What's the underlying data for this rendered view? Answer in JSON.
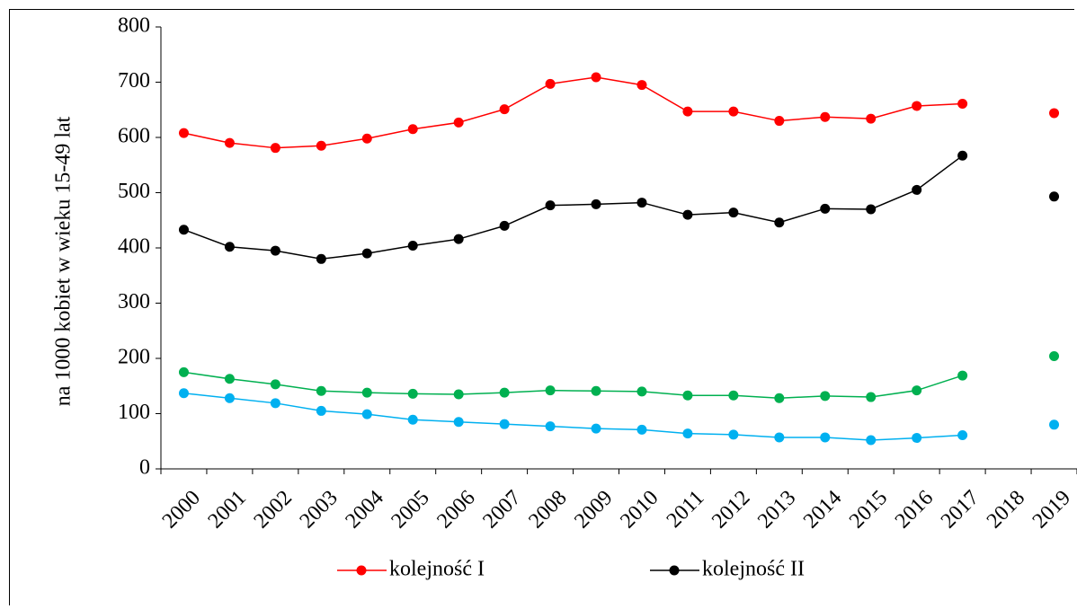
{
  "chart_data": {
    "type": "line",
    "title": "",
    "xlabel": "",
    "ylabel": "na 1000 kobiet w wieku 15-49 lat",
    "ylim": [
      0,
      800
    ],
    "y_ticks": [
      "0",
      "100",
      "200",
      "300",
      "400",
      "500",
      "600",
      "700",
      "800"
    ],
    "categories": [
      "2000",
      "2001",
      "2002",
      "2003",
      "2004",
      "2005",
      "2006",
      "2007",
      "2008",
      "2009",
      "2010",
      "2011",
      "2012",
      "2013",
      "2014",
      "2015",
      "2016",
      "2017",
      "2018",
      "2019"
    ],
    "grid": false,
    "legend_position": "bottom",
    "series": [
      {
        "name": "kolejność I",
        "color": "#ff0000",
        "values": [
          608,
          590,
          581,
          585,
          598,
          615,
          627,
          651,
          697,
          709,
          695,
          647,
          647,
          630,
          637,
          634,
          657,
          661,
          null,
          644
        ]
      },
      {
        "name": "kolejność II",
        "color": "#000000",
        "values": [
          433,
          402,
          395,
          380,
          390,
          404,
          416,
          440,
          477,
          479,
          482,
          460,
          464,
          446,
          471,
          470,
          505,
          567,
          null,
          493
        ]
      },
      {
        "color": "#00b050",
        "values": [
          175,
          163,
          153,
          141,
          138,
          136,
          135,
          138,
          142,
          141,
          140,
          133,
          133,
          128,
          132,
          130,
          142,
          169,
          null,
          204
        ]
      },
      {
        "color": "#00b0f0",
        "values": [
          137,
          128,
          119,
          105,
          99,
          89,
          85,
          81,
          77,
          73,
          71,
          64,
          62,
          57,
          57,
          52,
          56,
          61,
          null,
          80
        ]
      }
    ]
  }
}
